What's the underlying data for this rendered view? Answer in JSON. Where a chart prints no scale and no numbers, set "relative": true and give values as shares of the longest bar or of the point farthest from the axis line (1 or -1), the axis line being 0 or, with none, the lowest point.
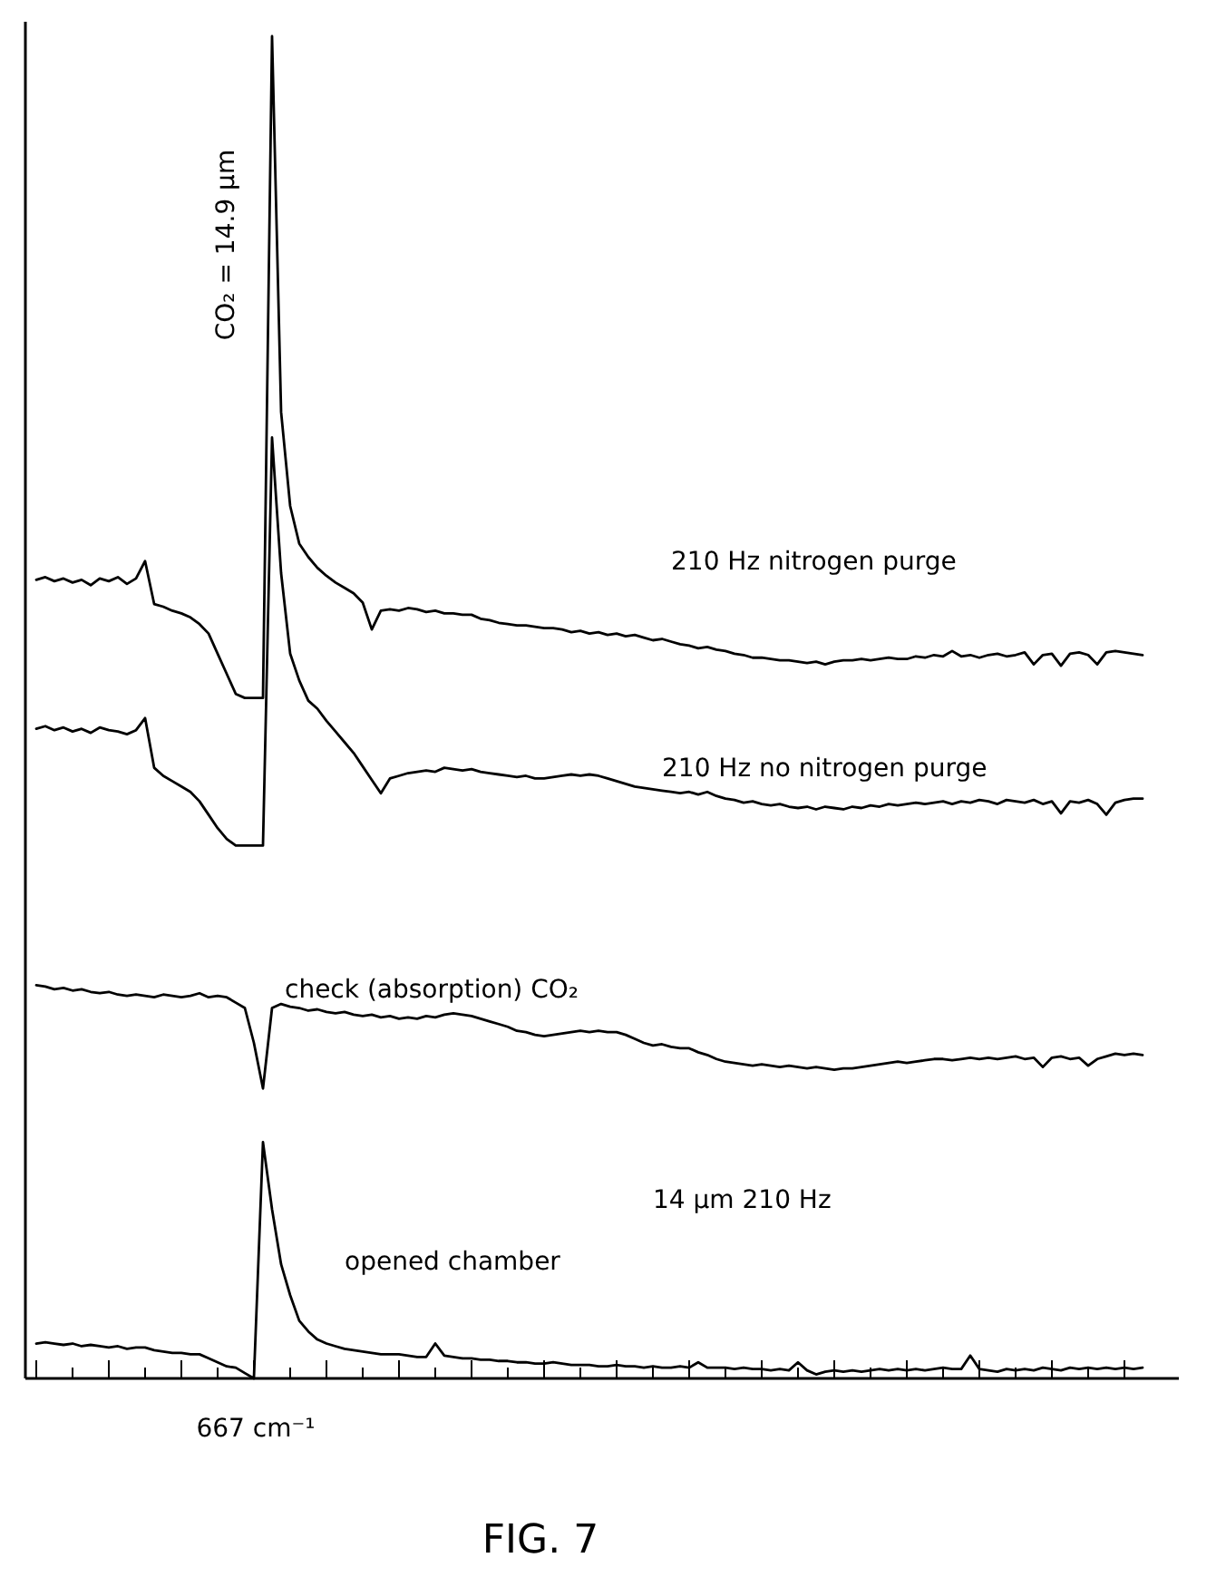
{
  "chart_data": {
    "type": "line",
    "relative": true,
    "categories": [
      null,
      null,
      null,
      null,
      null,
      null,
      null,
      null,
      null,
      null,
      null,
      null,
      null,
      null,
      null,
      null,
      null,
      null,
      null,
      null,
      null,
      null,
      null,
      null,
      null,
      null,
      null,
      null,
      null,
      null,
      null,
      null,
      null,
      null,
      null,
      null,
      null,
      null,
      null,
      null,
      null,
      null,
      null,
      null,
      null,
      null,
      null,
      null,
      null,
      null,
      null,
      null,
      null,
      null,
      null,
      null,
      null,
      null,
      null,
      null,
      null,
      null,
      null,
      null,
      null,
      null,
      null,
      null,
      null,
      null,
      null,
      null,
      null,
      null,
      null,
      null,
      null,
      null,
      null,
      null,
      null,
      null,
      null,
      null,
      null,
      null,
      null,
      null,
      null,
      null,
      null,
      null,
      null,
      null,
      null,
      null,
      null,
      null,
      null,
      null,
      null,
      null,
      null,
      null,
      null,
      null,
      null,
      null,
      null,
      null,
      null,
      null,
      null,
      null,
      null,
      null,
      null,
      null,
      null,
      null,
      null,
      null,
      null
    ],
    "series": [
      {
        "name": "210 Hz nitrogen purge",
        "color": "#000000",
        "values": [
          0.595,
          0.597,
          0.594,
          0.596,
          0.593,
          0.595,
          0.591,
          0.596,
          0.594,
          0.597,
          0.592,
          0.596,
          0.609,
          0.577,
          0.575,
          0.572,
          0.57,
          0.567,
          0.562,
          0.555,
          0.54,
          0.525,
          0.51,
          0.507,
          0.507,
          0.507,
          1,
          0.72,
          0.65,
          0.622,
          0.612,
          0.604,
          0.598,
          0.593,
          0.589,
          0.585,
          0.578,
          0.558,
          0.572,
          0.573,
          0.572,
          0.574,
          0.573,
          0.571,
          0.572,
          0.57,
          0.57,
          0.569,
          0.569,
          0.566,
          0.565,
          0.563,
          0.562,
          0.561,
          0.561,
          0.56,
          0.559,
          0.559,
          0.558,
          0.556,
          0.557,
          0.555,
          0.556,
          0.554,
          0.555,
          0.553,
          0.554,
          0.552,
          0.55,
          0.551,
          0.549,
          0.547,
          0.546,
          0.544,
          0.545,
          0.543,
          0.542,
          0.54,
          0.539,
          0.537,
          0.537,
          0.536,
          0.535,
          0.535,
          0.534,
          0.533,
          0.534,
          0.532,
          0.534,
          0.535,
          0.535,
          0.536,
          0.535,
          0.536,
          0.537,
          0.536,
          0.536,
          0.538,
          0.537,
          0.539,
          0.538,
          0.542,
          0.538,
          0.539,
          0.537,
          0.539,
          0.54,
          0.538,
          0.539,
          0.541,
          0.532,
          0.539,
          0.54,
          0.531,
          0.54,
          0.541,
          0.539,
          0.532,
          0.541,
          0.542,
          0.541,
          0.54,
          0.539
        ]
      },
      {
        "name": "210 Hz no nitrogen purge",
        "color": "#000000",
        "values": [
          0.484,
          0.486,
          0.483,
          0.485,
          0.482,
          0.484,
          0.481,
          0.485,
          0.483,
          0.482,
          0.48,
          0.483,
          0.492,
          0.455,
          0.449,
          0.445,
          0.441,
          0.437,
          0.43,
          0.42,
          0.41,
          0.402,
          0.397,
          0.397,
          0.397,
          0.397,
          0.701,
          0.6,
          0.54,
          0.52,
          0.505,
          0.499,
          0.49,
          0.482,
          0.474,
          0.466,
          0.456,
          0.446,
          0.436,
          0.447,
          0.449,
          0.451,
          0.452,
          0.453,
          0.452,
          0.455,
          0.454,
          0.453,
          0.454,
          0.452,
          0.451,
          0.45,
          0.449,
          0.448,
          0.449,
          0.447,
          0.447,
          0.448,
          0.449,
          0.45,
          0.449,
          0.45,
          0.449,
          0.447,
          0.445,
          0.443,
          0.441,
          0.44,
          0.439,
          0.438,
          0.437,
          0.436,
          0.437,
          0.435,
          0.437,
          0.434,
          0.432,
          0.431,
          0.429,
          0.43,
          0.428,
          0.427,
          0.428,
          0.426,
          0.425,
          0.426,
          0.424,
          0.426,
          0.425,
          0.424,
          0.426,
          0.425,
          0.427,
          0.426,
          0.428,
          0.427,
          0.428,
          0.429,
          0.428,
          0.429,
          0.43,
          0.428,
          0.43,
          0.429,
          0.431,
          0.43,
          0.428,
          0.431,
          0.43,
          0.429,
          0.431,
          0.428,
          0.43,
          0.421,
          0.43,
          0.429,
          0.431,
          0.428,
          0.42,
          0.429,
          0.431,
          0.432,
          0.432
        ]
      },
      {
        "name": "check (absorption) CO₂",
        "color": "#000000",
        "values": [
          0.293,
          0.292,
          0.29,
          0.291,
          0.289,
          0.29,
          0.288,
          0.287,
          0.288,
          0.286,
          0.285,
          0.286,
          0.285,
          0.284,
          0.286,
          0.285,
          0.284,
          0.285,
          0.287,
          0.284,
          0.285,
          0.284,
          0.28,
          0.276,
          0.25,
          0.216,
          0.276,
          0.279,
          0.277,
          0.276,
          0.274,
          0.275,
          0.273,
          0.272,
          0.273,
          0.271,
          0.27,
          0.271,
          0.269,
          0.27,
          0.268,
          0.269,
          0.268,
          0.27,
          0.269,
          0.271,
          0.272,
          0.271,
          0.27,
          0.268,
          0.266,
          0.264,
          0.262,
          0.259,
          0.258,
          0.256,
          0.255,
          0.256,
          0.257,
          0.258,
          0.259,
          0.258,
          0.259,
          0.258,
          0.258,
          0.256,
          0.253,
          0.25,
          0.248,
          0.249,
          0.247,
          0.246,
          0.246,
          0.243,
          0.241,
          0.238,
          0.236,
          0.235,
          0.234,
          0.233,
          0.234,
          0.233,
          0.232,
          0.233,
          0.232,
          0.231,
          0.232,
          0.231,
          0.23,
          0.231,
          0.231,
          0.232,
          0.233,
          0.234,
          0.235,
          0.236,
          0.235,
          0.236,
          0.237,
          0.238,
          0.238,
          0.237,
          0.238,
          0.239,
          0.238,
          0.239,
          0.238,
          0.239,
          0.24,
          0.238,
          0.239,
          0.232,
          0.239,
          0.24,
          0.238,
          0.239,
          0.233,
          0.238,
          0.24,
          0.242,
          0.241,
          0.242,
          0.241
        ]
      },
      {
        "color": "#000000",
        "values": [
          0.026,
          0.027,
          0.026,
          0.025,
          0.026,
          0.024,
          0.025,
          0.024,
          0.023,
          0.024,
          0.022,
          0.023,
          0.023,
          0.021,
          0.02,
          0.019,
          0.019,
          0.018,
          0.018,
          0.015,
          0.012,
          0.009,
          0.008,
          0.004,
          0,
          0.176,
          0.126,
          0.085,
          0.062,
          0.043,
          0.035,
          0.029,
          0.026,
          0.024,
          0.022,
          0.021,
          0.02,
          0.019,
          0.018,
          0.018,
          0.018,
          0.017,
          0.016,
          0.016,
          0.026,
          0.017,
          0.016,
          0.015,
          0.015,
          0.014,
          0.014,
          0.013,
          0.013,
          0.012,
          0.012,
          0.011,
          0.011,
          0.012,
          0.011,
          0.01,
          0.01,
          0.01,
          0.009,
          0.009,
          0.01,
          0.009,
          0.009,
          0.008,
          0.009,
          0.008,
          0.008,
          0.009,
          0.008,
          0.012,
          0.008,
          0.008,
          0.008,
          0.007,
          0.008,
          0.007,
          0.007,
          0.006,
          0.007,
          0.006,
          0.012,
          0.006,
          0.003,
          0.005,
          0.006,
          0.005,
          0.006,
          0.005,
          0.006,
          0.007,
          0.006,
          0.007,
          0.006,
          0.007,
          0.006,
          0.007,
          0.008,
          0.007,
          0.007,
          0.017,
          0.007,
          0.006,
          0.005,
          0.007,
          0.006,
          0.007,
          0.006,
          0.008,
          0.007,
          0.006,
          0.008,
          0.007,
          0.008,
          0.007,
          0.008,
          0.007,
          0.008,
          0.007,
          0.008
        ]
      }
    ],
    "annotations": [
      "CO₂ = 14.9 μm",
      "14 μm 210 Hz",
      "opened chamber",
      "667 cm⁻¹",
      "FIG. 7"
    ]
  }
}
